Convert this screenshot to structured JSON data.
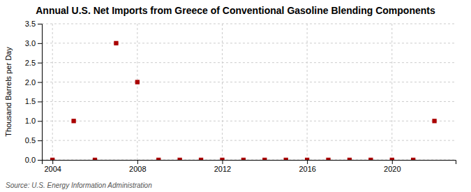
{
  "chart_data": {
    "type": "scatter",
    "title": "Annual U.S. Net Imports from Greece of Conventional Gasoline Blending Components",
    "y_label": "Thousand Barrels per Day",
    "annotations": [
      "Source: U.S. Energy Information Administration"
    ],
    "x": [
      2004,
      2005,
      2006,
      2007,
      2008,
      2009,
      2010,
      2011,
      2012,
      2013,
      2014,
      2015,
      2016,
      2017,
      2018,
      2019,
      2020,
      2021,
      2022
    ],
    "values": [
      0.0,
      1.0,
      0.0,
      3.0,
      2.0,
      0.0,
      0.0,
      0.0,
      0.0,
      0.0,
      0.0,
      0.0,
      0.0,
      0.0,
      0.0,
      0.0,
      0.0,
      0.0,
      1.0
    ],
    "color": "#aa0000",
    "marker": "square",
    "xlim": [
      2003.5,
      2023.0
    ],
    "xticks": [
      2004,
      2008,
      2012,
      2016,
      2020
    ],
    "ylim": [
      0.0,
      3.5
    ],
    "yticks": [
      {
        "value": 0.0,
        "label": "0.0"
      },
      0.5,
      {
        "value": 1.0,
        "label": "1.0"
      },
      1.5,
      {
        "value": 2.0,
        "label": "2.0"
      },
      2.5,
      {
        "value": 3.0,
        "label": "3.0"
      },
      3.5
    ],
    "grid": true
  }
}
